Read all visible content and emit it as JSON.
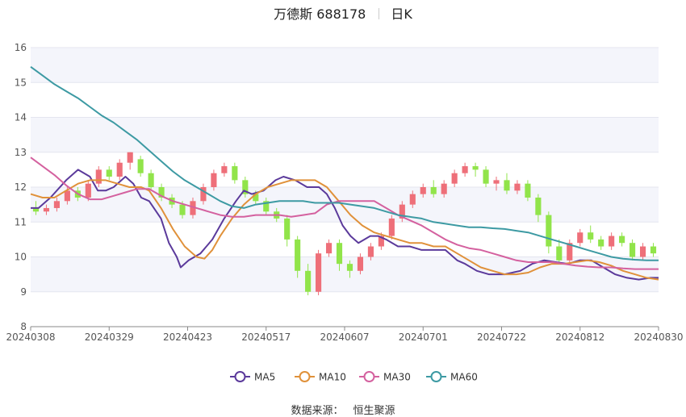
{
  "header": {
    "title": "万德斯 688178",
    "period": "日K"
  },
  "footer": {
    "source_label": "数据来源：",
    "source_value": "恒生聚源"
  },
  "colors": {
    "up": "#ee6f79",
    "down": "#91e44a",
    "MA5": "#5b3a9b",
    "MA10": "#e0913a",
    "MA30": "#d4619f",
    "MA60": "#3d9aa3",
    "band": "#f4f5fb",
    "grid": "#e4e6ef"
  },
  "chart_data": {
    "type": "candlestick",
    "y_ticks": [
      8,
      9,
      10,
      11,
      12,
      13,
      14,
      15,
      16
    ],
    "ylim": [
      8,
      16
    ],
    "x_labels": [
      "20240308",
      "20240329",
      "20240423",
      "20240517",
      "20240607",
      "20240701",
      "20240722",
      "20240812",
      "20240830"
    ],
    "legend": [
      {
        "name": "MA5",
        "icon": "circle-line-icon"
      },
      {
        "name": "MA10",
        "icon": "circle-line-icon"
      },
      {
        "name": "MA30",
        "icon": "circle-line-icon"
      },
      {
        "name": "MA60",
        "icon": "circle-line-icon"
      }
    ],
    "ma_series": [
      {
        "name": "MA5",
        "points": [
          [
            0,
            11.4
          ],
          [
            2,
            11.4
          ],
          [
            5,
            11.7
          ],
          [
            9,
            12.2
          ],
          [
            12,
            12.5
          ],
          [
            15,
            12.3
          ],
          [
            17,
            11.9
          ],
          [
            19,
            11.9
          ],
          [
            21,
            12.0
          ],
          [
            24,
            12.3
          ],
          [
            26,
            12.1
          ],
          [
            28,
            11.7
          ],
          [
            30,
            11.6
          ],
          [
            33,
            11.1
          ],
          [
            35,
            10.4
          ],
          [
            37,
            10.0
          ],
          [
            38,
            9.7
          ],
          [
            40,
            9.9
          ],
          [
            43,
            10.1
          ],
          [
            46,
            10.5
          ],
          [
            49,
            11.1
          ],
          [
            52,
            11.6
          ],
          [
            54,
            11.9
          ],
          [
            56,
            11.8
          ],
          [
            59,
            11.9
          ],
          [
            62,
            12.2
          ],
          [
            64,
            12.3
          ],
          [
            67,
            12.2
          ],
          [
            70,
            12.0
          ],
          [
            73,
            12.0
          ],
          [
            75,
            11.8
          ],
          [
            77,
            11.4
          ],
          [
            79,
            10.9
          ],
          [
            81,
            10.6
          ],
          [
            83,
            10.4
          ],
          [
            86,
            10.6
          ],
          [
            88,
            10.6
          ],
          [
            90,
            10.5
          ],
          [
            93,
            10.3
          ],
          [
            96,
            10.3
          ],
          [
            99,
            10.2
          ],
          [
            102,
            10.2
          ],
          [
            105,
            10.2
          ],
          [
            108,
            9.9
          ],
          [
            110,
            9.8
          ],
          [
            113,
            9.6
          ],
          [
            116,
            9.5
          ],
          [
            120,
            9.5
          ],
          [
            124,
            9.6
          ],
          [
            127,
            9.8
          ],
          [
            130,
            9.9
          ],
          [
            133,
            9.85
          ],
          [
            136,
            9.8
          ],
          [
            139,
            9.9
          ],
          [
            142,
            9.9
          ],
          [
            145,
            9.7
          ],
          [
            148,
            9.5
          ],
          [
            151,
            9.4
          ],
          [
            154,
            9.35
          ],
          [
            157,
            9.4
          ],
          [
            159,
            9.4
          ]
        ]
      },
      {
        "name": "MA10",
        "points": [
          [
            0,
            11.8
          ],
          [
            3,
            11.7
          ],
          [
            6,
            11.7
          ],
          [
            9,
            11.9
          ],
          [
            12,
            12.1
          ],
          [
            15,
            12.2
          ],
          [
            19,
            12.2
          ],
          [
            22,
            12.1
          ],
          [
            25,
            12.0
          ],
          [
            28,
            12.0
          ],
          [
            30,
            11.9
          ],
          [
            33,
            11.4
          ],
          [
            36,
            10.8
          ],
          [
            39,
            10.3
          ],
          [
            42,
            10.0
          ],
          [
            44,
            9.95
          ],
          [
            46,
            10.2
          ],
          [
            48,
            10.6
          ],
          [
            51,
            11.1
          ],
          [
            54,
            11.5
          ],
          [
            57,
            11.8
          ],
          [
            60,
            12.0
          ],
          [
            63,
            12.1
          ],
          [
            66,
            12.2
          ],
          [
            69,
            12.2
          ],
          [
            72,
            12.2
          ],
          [
            75,
            12.0
          ],
          [
            78,
            11.6
          ],
          [
            81,
            11.2
          ],
          [
            84,
            10.9
          ],
          [
            87,
            10.7
          ],
          [
            90,
            10.6
          ],
          [
            93,
            10.5
          ],
          [
            96,
            10.4
          ],
          [
            99,
            10.4
          ],
          [
            102,
            10.3
          ],
          [
            105,
            10.3
          ],
          [
            108,
            10.1
          ],
          [
            111,
            9.9
          ],
          [
            114,
            9.7
          ],
          [
            117,
            9.6
          ],
          [
            120,
            9.5
          ],
          [
            123,
            9.5
          ],
          [
            126,
            9.55
          ],
          [
            129,
            9.7
          ],
          [
            132,
            9.8
          ],
          [
            135,
            9.8
          ],
          [
            138,
            9.85
          ],
          [
            141,
            9.9
          ],
          [
            144,
            9.85
          ],
          [
            147,
            9.75
          ],
          [
            150,
            9.6
          ],
          [
            153,
            9.5
          ],
          [
            156,
            9.4
          ],
          [
            159,
            9.35
          ]
        ]
      },
      {
        "name": "MA30",
        "points": [
          [
            0,
            12.85
          ],
          [
            3,
            12.6
          ],
          [
            6,
            12.35
          ],
          [
            9,
            12.05
          ],
          [
            12,
            11.8
          ],
          [
            15,
            11.65
          ],
          [
            18,
            11.65
          ],
          [
            21,
            11.75
          ],
          [
            24,
            11.85
          ],
          [
            27,
            11.95
          ],
          [
            30,
            11.95
          ],
          [
            33,
            11.75
          ],
          [
            36,
            11.6
          ],
          [
            39,
            11.5
          ],
          [
            42,
            11.4
          ],
          [
            45,
            11.3
          ],
          [
            48,
            11.2
          ],
          [
            51,
            11.15
          ],
          [
            54,
            11.15
          ],
          [
            57,
            11.2
          ],
          [
            60,
            11.2
          ],
          [
            63,
            11.2
          ],
          [
            66,
            11.15
          ],
          [
            69,
            11.2
          ],
          [
            72,
            11.25
          ],
          [
            75,
            11.5
          ],
          [
            78,
            11.6
          ],
          [
            81,
            11.6
          ],
          [
            84,
            11.6
          ],
          [
            87,
            11.6
          ],
          [
            90,
            11.4
          ],
          [
            93,
            11.2
          ],
          [
            96,
            11.05
          ],
          [
            99,
            10.9
          ],
          [
            102,
            10.7
          ],
          [
            105,
            10.5
          ],
          [
            108,
            10.35
          ],
          [
            111,
            10.25
          ],
          [
            114,
            10.2
          ],
          [
            117,
            10.1
          ],
          [
            120,
            10.0
          ],
          [
            123,
            9.9
          ],
          [
            126,
            9.85
          ],
          [
            129,
            9.85
          ],
          [
            132,
            9.85
          ],
          [
            135,
            9.8
          ],
          [
            138,
            9.75
          ],
          [
            141,
            9.72
          ],
          [
            144,
            9.7
          ],
          [
            147,
            9.7
          ],
          [
            150,
            9.67
          ],
          [
            153,
            9.65
          ],
          [
            156,
            9.65
          ],
          [
            159,
            9.65
          ]
        ]
      },
      {
        "name": "MA60",
        "points": [
          [
            0,
            15.45
          ],
          [
            3,
            15.2
          ],
          [
            6,
            14.95
          ],
          [
            9,
            14.75
          ],
          [
            12,
            14.55
          ],
          [
            15,
            14.3
          ],
          [
            18,
            14.05
          ],
          [
            21,
            13.85
          ],
          [
            24,
            13.6
          ],
          [
            27,
            13.35
          ],
          [
            30,
            13.05
          ],
          [
            33,
            12.75
          ],
          [
            36,
            12.45
          ],
          [
            39,
            12.2
          ],
          [
            42,
            12.0
          ],
          [
            45,
            11.8
          ],
          [
            48,
            11.6
          ],
          [
            51,
            11.45
          ],
          [
            54,
            11.4
          ],
          [
            57,
            11.5
          ],
          [
            60,
            11.55
          ],
          [
            63,
            11.6
          ],
          [
            66,
            11.6
          ],
          [
            69,
            11.6
          ],
          [
            72,
            11.55
          ],
          [
            75,
            11.55
          ],
          [
            78,
            11.55
          ],
          [
            81,
            11.5
          ],
          [
            84,
            11.45
          ],
          [
            87,
            11.4
          ],
          [
            90,
            11.3
          ],
          [
            93,
            11.2
          ],
          [
            96,
            11.15
          ],
          [
            99,
            11.1
          ],
          [
            102,
            11.0
          ],
          [
            105,
            10.95
          ],
          [
            108,
            10.9
          ],
          [
            111,
            10.85
          ],
          [
            114,
            10.85
          ],
          [
            117,
            10.82
          ],
          [
            120,
            10.8
          ],
          [
            123,
            10.75
          ],
          [
            126,
            10.7
          ],
          [
            129,
            10.6
          ],
          [
            132,
            10.5
          ],
          [
            135,
            10.4
          ],
          [
            138,
            10.3
          ],
          [
            141,
            10.2
          ],
          [
            144,
            10.1
          ],
          [
            147,
            10.0
          ],
          [
            150,
            9.95
          ],
          [
            153,
            9.92
          ],
          [
            156,
            9.9
          ],
          [
            159,
            9.9
          ]
        ]
      }
    ],
    "candles": [
      [
        11.4,
        11.3,
        11.6,
        11.2
      ],
      [
        11.3,
        11.4,
        11.5,
        11.2
      ],
      [
        11.4,
        11.6,
        11.7,
        11.3
      ],
      [
        11.6,
        11.9,
        12.0,
        11.5
      ],
      [
        11.9,
        11.7,
        12.0,
        11.6
      ],
      [
        11.7,
        12.1,
        12.2,
        11.6
      ],
      [
        12.1,
        12.5,
        12.6,
        12.0
      ],
      [
        12.5,
        12.3,
        12.6,
        12.2
      ],
      [
        12.3,
        12.7,
        12.8,
        12.2
      ],
      [
        12.7,
        13.0,
        13.0,
        12.5
      ],
      [
        12.8,
        12.4,
        12.9,
        12.3
      ],
      [
        12.4,
        12.0,
        12.5,
        11.9
      ],
      [
        12.0,
        11.7,
        12.1,
        11.6
      ],
      [
        11.7,
        11.5,
        11.8,
        11.4
      ],
      [
        11.5,
        11.2,
        11.6,
        11.1
      ],
      [
        11.2,
        11.6,
        11.7,
        11.1
      ],
      [
        11.6,
        12.0,
        12.1,
        11.5
      ],
      [
        12.0,
        12.4,
        12.5,
        11.9
      ],
      [
        12.4,
        12.6,
        12.7,
        12.3
      ],
      [
        12.6,
        12.2,
        12.7,
        12.1
      ],
      [
        12.2,
        11.8,
        12.3,
        11.7
      ],
      [
        11.8,
        11.6,
        11.9,
        11.5
      ],
      [
        11.6,
        11.3,
        11.7,
        11.2
      ],
      [
        11.3,
        11.1,
        11.4,
        11.0
      ],
      [
        11.1,
        10.5,
        11.2,
        10.3
      ],
      [
        10.5,
        9.6,
        10.6,
        9.4
      ],
      [
        9.6,
        9.0,
        9.8,
        8.9
      ],
      [
        9.0,
        10.1,
        10.2,
        8.9
      ],
      [
        10.1,
        10.4,
        10.5,
        10.0
      ],
      [
        10.4,
        9.8,
        10.5,
        9.6
      ],
      [
        9.8,
        9.6,
        9.9,
        9.4
      ],
      [
        9.6,
        10.0,
        10.1,
        9.5
      ],
      [
        10.0,
        10.3,
        10.4,
        9.9
      ],
      [
        10.3,
        10.6,
        10.7,
        10.2
      ],
      [
        10.6,
        11.1,
        11.2,
        10.5
      ],
      [
        11.1,
        11.5,
        11.6,
        11.0
      ],
      [
        11.5,
        11.8,
        11.9,
        11.4
      ],
      [
        11.8,
        12.0,
        12.1,
        11.7
      ],
      [
        12.0,
        11.8,
        12.2,
        11.7
      ],
      [
        11.8,
        12.1,
        12.2,
        11.7
      ],
      [
        12.1,
        12.4,
        12.5,
        12.0
      ],
      [
        12.4,
        12.6,
        12.7,
        12.3
      ],
      [
        12.6,
        12.5,
        12.7,
        12.3
      ],
      [
        12.5,
        12.1,
        12.6,
        12.0
      ],
      [
        12.1,
        12.2,
        12.3,
        11.9
      ],
      [
        12.2,
        11.9,
        12.4,
        11.8
      ],
      [
        11.9,
        12.1,
        12.2,
        11.8
      ],
      [
        12.1,
        11.7,
        12.2,
        11.6
      ],
      [
        11.7,
        11.2,
        11.8,
        11.0
      ],
      [
        11.2,
        10.3,
        11.3,
        10.1
      ],
      [
        10.3,
        9.9,
        10.5,
        9.8
      ],
      [
        9.9,
        10.4,
        10.5,
        9.8
      ],
      [
        10.4,
        10.7,
        10.8,
        10.3
      ],
      [
        10.7,
        10.5,
        10.9,
        10.4
      ],
      [
        10.5,
        10.3,
        10.6,
        10.2
      ],
      [
        10.3,
        10.6,
        10.7,
        10.2
      ],
      [
        10.6,
        10.4,
        10.7,
        10.3
      ],
      [
        10.4,
        10.0,
        10.5,
        9.9
      ],
      [
        10.0,
        10.3,
        10.4,
        9.9
      ],
      [
        10.3,
        10.1,
        10.4,
        10.0
      ]
    ]
  }
}
